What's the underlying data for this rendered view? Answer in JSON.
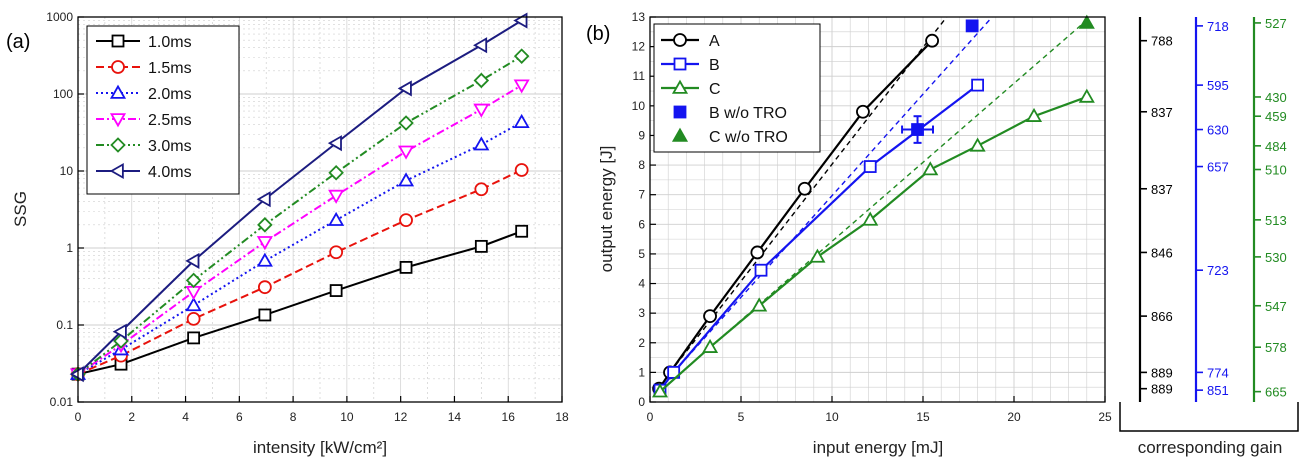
{
  "colors": {
    "black": "#000000",
    "red": "#e8120c",
    "blue": "#1414f0",
    "magenta": "#ff00ff",
    "green": "#228b22",
    "navy": "#1c1c80",
    "grid": "#cfcfcf"
  },
  "chart_data": [
    {
      "type": "line",
      "panel_label": "(a)",
      "xlabel": "intensity [kW/cm²]",
      "ylabel": "SSG",
      "xlim": [
        0,
        18
      ],
      "ylim": [
        0.01,
        1000
      ],
      "yscale": "log",
      "xticks": [
        "0",
        "2",
        "4",
        "6",
        "8",
        "10",
        "12",
        "14",
        "16",
        "18"
      ],
      "yticks": [
        "0.01",
        "0.1",
        "1",
        "10",
        "100",
        "1000"
      ],
      "grid": true,
      "legend_position": "top-left",
      "x": [
        0,
        1.6,
        4.3,
        6.95,
        9.6,
        12.2,
        15.0,
        16.5
      ],
      "series": [
        {
          "name": "1.0ms",
          "values": [
            0.023,
            0.031,
            0.068,
            0.135,
            0.28,
            0.56,
            1.05,
            1.65
          ],
          "color": "#000000",
          "marker": "square",
          "dash": "solid"
        },
        {
          "name": "1.5ms",
          "values": [
            0.023,
            0.04,
            0.12,
            0.31,
            0.88,
            2.3,
            5.8,
            10.3
          ],
          "color": "#e8120c",
          "marker": "circle",
          "dash": "dash"
        },
        {
          "name": "2.0ms",
          "values": [
            0.023,
            0.048,
            0.18,
            0.68,
            2.3,
            7.5,
            22,
            43
          ],
          "color": "#1414f0",
          "marker": "triangle-up",
          "dash": "dot"
        },
        {
          "name": "2.5ms",
          "values": [
            0.023,
            0.055,
            0.27,
            1.2,
            4.8,
            18,
            63,
            130
          ],
          "color": "#ff00ff",
          "marker": "triangle-down",
          "dash": "dashdot"
        },
        {
          "name": "3.0ms",
          "values": [
            0.023,
            0.062,
            0.38,
            2.0,
            9.5,
            42,
            150,
            310
          ],
          "color": "#228b22",
          "marker": "diamond",
          "dash": "dashdotdot"
        },
        {
          "name": "4.0ms",
          "values": [
            0.023,
            0.082,
            0.68,
            4.3,
            23,
            118,
            430,
            900
          ],
          "color": "#1c1c80",
          "marker": "triangle-left",
          "dash": "solid"
        }
      ]
    },
    {
      "type": "line",
      "panel_label": "(b)",
      "xlabel": "input energy [mJ]",
      "ylabel": "output energy [J]",
      "xlim": [
        0,
        25
      ],
      "ylim": [
        0,
        13
      ],
      "xticks": [
        "0",
        "5",
        "10",
        "15",
        "20",
        "25"
      ],
      "yticks": [
        "0",
        "1",
        "2",
        "3",
        "4",
        "5",
        "6",
        "7",
        "8",
        "9",
        "10",
        "11",
        "12",
        "13"
      ],
      "grid": true,
      "legend_position": "top-left",
      "series": [
        {
          "name": "A",
          "x": [
            0.5,
            1.1,
            3.3,
            5.9,
            8.5,
            11.7,
            15.5
          ],
          "values": [
            0.45,
            1.0,
            2.9,
            5.05,
            7.2,
            9.8,
            12.2
          ],
          "color": "#000000",
          "marker": "circle-open"
        },
        {
          "name": "B",
          "x": [
            0.55,
            1.3,
            6.1,
            12.1,
            18.0
          ],
          "values": [
            0.4,
            1.0,
            4.45,
            7.95,
            10.7
          ],
          "color": "#1414f0",
          "marker": "square-open"
        },
        {
          "name": "C",
          "x": [
            0.55,
            3.3,
            6.0,
            9.2,
            12.1,
            15.4,
            18.0,
            21.1,
            24.0
          ],
          "values": [
            0.35,
            1.85,
            3.25,
            4.9,
            6.15,
            7.85,
            8.65,
            9.65,
            10.3
          ],
          "color": "#228b22",
          "marker": "triangle-open"
        },
        {
          "name": "B w/o TRO",
          "x": [
            17.7,
            14.7
          ],
          "values": [
            12.7,
            9.2
          ],
          "color": "#1414f0",
          "marker": "square-filled"
        },
        {
          "name": "C w/o TRO",
          "x": [
            24.0
          ],
          "values": [
            12.8
          ],
          "color": "#228b22",
          "marker": "triangle-filled"
        }
      ],
      "errorbar": {
        "x": 14.7,
        "y": 9.2,
        "xerr": 0.85,
        "yerr": 0.45
      },
      "trend_lines": [
        {
          "color": "#000000",
          "x": [
            1.1,
            16.3
          ],
          "values": [
            1.0,
            13.0
          ]
        },
        {
          "color": "#1414f0",
          "x": [
            1.3,
            18.8
          ],
          "values": [
            1.0,
            13.0
          ]
        },
        {
          "color": "#228b22",
          "x": [
            3.3,
            24.2
          ],
          "values": [
            1.85,
            13.0
          ]
        }
      ]
    }
  ],
  "gain_axes": {
    "label": "corresponding gain",
    "columns": [
      {
        "color": "#000000",
        "ticks": [
          {
            "label": "788",
            "y": 12.2
          },
          {
            "label": "837",
            "y": 9.8
          },
          {
            "label": "837",
            "y": 7.2
          },
          {
            "label": "846",
            "y": 5.05
          },
          {
            "label": "866",
            "y": 2.9
          },
          {
            "label": "889",
            "y": 1.0
          },
          {
            "label": "889",
            "y": 0.45
          }
        ]
      },
      {
        "color": "#1414f0",
        "ticks": [
          {
            "label": "718",
            "y": 12.7
          },
          {
            "label": "595",
            "y": 10.7
          },
          {
            "label": "630",
            "y": 9.2
          },
          {
            "label": "657",
            "y": 7.95
          },
          {
            "label": "723",
            "y": 4.45
          },
          {
            "label": "774",
            "y": 1.0
          },
          {
            "label": "851",
            "y": 0.4
          }
        ]
      },
      {
        "color": "#228b22",
        "ticks": [
          {
            "label": "527",
            "y": 12.8
          },
          {
            "label": "430",
            "y": 10.3
          },
          {
            "label": "459",
            "y": 9.65
          },
          {
            "label": "484",
            "y": 8.65
          },
          {
            "label": "510",
            "y": 7.85
          },
          {
            "label": "513",
            "y": 6.15
          },
          {
            "label": "530",
            "y": 4.9
          },
          {
            "label": "547",
            "y": 3.25
          },
          {
            "label": "578",
            "y": 1.85
          },
          {
            "label": "665",
            "y": 0.35
          }
        ]
      }
    ]
  }
}
